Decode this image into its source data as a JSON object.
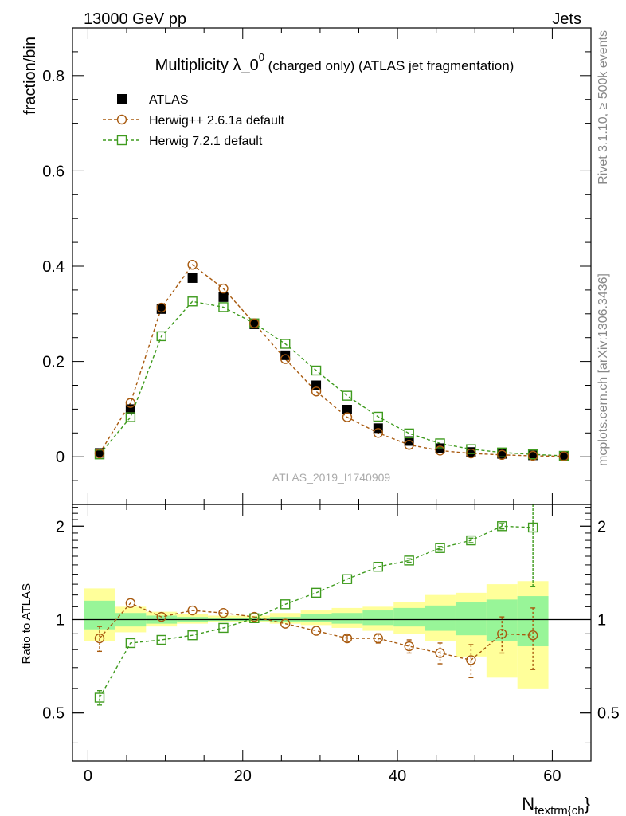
{
  "header": {
    "left": "13000 GeV pp",
    "right": "Jets"
  },
  "title": {
    "main": "Multiplicity λ_0",
    "superscript": "0",
    "suffix": " (charged only) (ATLAS jet fragmentation)"
  },
  "side_labels": {
    "rivet": "Rivet 3.1.10, ≥ 500k events",
    "mcplots": "mcplots.cern.ch [arXiv:1306.3436]"
  },
  "watermark": "ATLAS_2019_I1740909",
  "colors": {
    "herwig26": "#a85a0f",
    "herwig72": "#3f9b1e",
    "band_yellow": "#ffff9a",
    "band_green": "#98f598"
  },
  "chart_data": [
    {
      "type": "scatter",
      "name": "main",
      "ylabel": "fraction/bin",
      "xlim": [
        -2,
        65
      ],
      "ylim": [
        -0.1,
        0.9
      ],
      "yticks": [
        0,
        0.2,
        0.4,
        0.6,
        0.8
      ],
      "ytick_labels": [
        "0",
        "0.2",
        "0.4",
        "0.6",
        "0.8"
      ],
      "x": [
        1.5,
        5.5,
        9.5,
        13.5,
        17.5,
        21.5,
        25.5,
        29.5,
        33.5,
        37.5,
        41.5,
        45.5,
        49.5,
        53.5,
        57.5,
        61.5
      ],
      "series": [
        {
          "name": "ATLAS",
          "marker": "filled-square",
          "values": [
            0.008,
            0.1,
            0.31,
            0.375,
            0.335,
            0.278,
            0.213,
            0.15,
            0.099,
            0.06,
            0.033,
            0.018,
            0.01,
            0.006,
            0.003,
            0.002
          ]
        },
        {
          "name": "Herwig++ 2.6.1a default",
          "marker": "open-circle",
          "values": [
            0.007,
            0.113,
            0.313,
            0.403,
            0.353,
            0.28,
            0.205,
            0.137,
            0.083,
            0.05,
            0.025,
            0.013,
            0.007,
            0.004,
            0.002,
            0.001
          ]
        },
        {
          "name": "Herwig 7.2.1 default",
          "marker": "open-square",
          "values": [
            0.005,
            0.083,
            0.253,
            0.326,
            0.314,
            0.28,
            0.237,
            0.181,
            0.128,
            0.084,
            0.049,
            0.028,
            0.016,
            0.009,
            0.005,
            0.002
          ]
        }
      ]
    },
    {
      "type": "scatter",
      "name": "ratio",
      "ylabel": "Ratio to ATLAS",
      "xlabel": "N",
      "xlabel_sub": "textrm{ch",
      "xlabel_suffix": "}",
      "xlim": [
        -2,
        65
      ],
      "ylim": [
        0.35,
        2.35
      ],
      "xticks": [
        0,
        20,
        40,
        60
      ],
      "xtick_labels": [
        "0",
        "20",
        "40",
        "60"
      ],
      "yticks": [
        0.5,
        1,
        2
      ],
      "ytick_labels": [
        "0.5",
        "1",
        "2"
      ],
      "bins": [
        [
          -0.5,
          3.5
        ],
        [
          3.5,
          7.5
        ],
        [
          7.5,
          11.5
        ],
        [
          11.5,
          15.5
        ],
        [
          15.5,
          19.5
        ],
        [
          19.5,
          23.5
        ],
        [
          23.5,
          27.5
        ],
        [
          27.5,
          31.5
        ],
        [
          31.5,
          35.5
        ],
        [
          35.5,
          39.5
        ],
        [
          39.5,
          43.5
        ],
        [
          43.5,
          47.5
        ],
        [
          47.5,
          51.5
        ],
        [
          51.5,
          55.5
        ],
        [
          55.5,
          59.5
        ]
      ],
      "band_yellow": [
        [
          0.85,
          1.26
        ],
        [
          0.91,
          1.1
        ],
        [
          0.95,
          1.06
        ],
        [
          0.97,
          1.04
        ],
        [
          0.98,
          1.03
        ],
        [
          0.98,
          1.03
        ],
        [
          0.97,
          1.05
        ],
        [
          0.96,
          1.07
        ],
        [
          0.94,
          1.09
        ],
        [
          0.92,
          1.1
        ],
        [
          0.9,
          1.14
        ],
        [
          0.85,
          1.2
        ],
        [
          0.76,
          1.22
        ],
        [
          0.65,
          1.3
        ],
        [
          0.6,
          1.33
        ]
      ],
      "band_green": [
        [
          0.93,
          1.15
        ],
        [
          0.95,
          1.05
        ],
        [
          0.97,
          1.03
        ],
        [
          0.985,
          1.02
        ],
        [
          0.99,
          1.015
        ],
        [
          0.99,
          1.015
        ],
        [
          0.985,
          1.02
        ],
        [
          0.98,
          1.04
        ],
        [
          0.97,
          1.05
        ],
        [
          0.96,
          1.07
        ],
        [
          0.95,
          1.09
        ],
        [
          0.92,
          1.11
        ],
        [
          0.89,
          1.14
        ],
        [
          0.85,
          1.16
        ],
        [
          0.82,
          1.19
        ]
      ],
      "x": [
        1.5,
        5.5,
        9.5,
        13.5,
        17.5,
        21.5,
        25.5,
        29.5,
        33.5,
        37.5,
        41.5,
        45.5,
        49.5,
        53.5,
        57.5
      ],
      "series": [
        {
          "name": "Herwig++ 2.6.1a default",
          "marker": "open-circle",
          "values": [
            0.87,
            1.13,
            1.02,
            1.07,
            1.05,
            1.02,
            0.97,
            0.92,
            0.87,
            0.87,
            0.82,
            0.78,
            0.74,
            0.9,
            0.89
          ],
          "errors": [
            0.08,
            0.01,
            0.01,
            0.01,
            0.01,
            0.01,
            0.01,
            0.01,
            0.02,
            0.03,
            0.04,
            0.06,
            0.09,
            0.12,
            0.2
          ]
        },
        {
          "name": "Herwig 7.2.1 default",
          "marker": "open-square",
          "values": [
            0.56,
            0.84,
            0.86,
            0.89,
            0.94,
            1.01,
            1.12,
            1.22,
            1.35,
            1.48,
            1.55,
            1.7,
            1.8,
            2.0,
            1.98
          ],
          "errors": [
            0.03,
            0.01,
            0.01,
            0.01,
            0.01,
            0.01,
            0.01,
            0.01,
            0.01,
            0.01,
            0.02,
            0.02,
            0.03,
            0.04,
            0.7
          ]
        }
      ]
    }
  ]
}
